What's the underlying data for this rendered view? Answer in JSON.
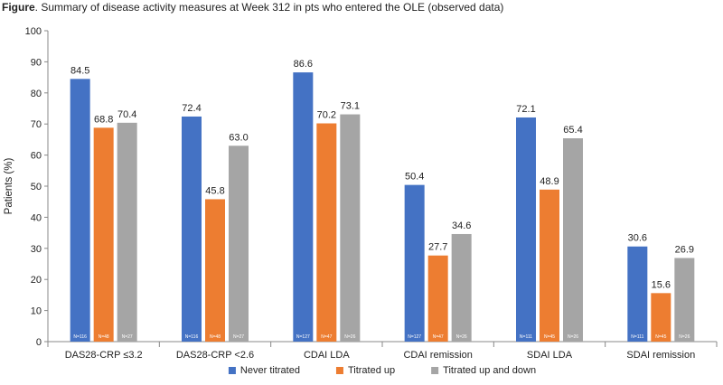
{
  "caption": {
    "prefix": "Figure",
    "text": ". Summary of disease activity measures at Week 312 in pts who entered the OLE (observed data)"
  },
  "chart_data": {
    "type": "bar",
    "ylabel": "Patients (%)",
    "xlabel": "",
    "ylim": [
      0,
      100
    ],
    "yticks": [
      0,
      10,
      20,
      30,
      40,
      50,
      60,
      70,
      80,
      90,
      100
    ],
    "grid": false,
    "legend_position": "bottom",
    "categories": [
      "DAS28-CRP ≤3.2",
      "DAS28-CRP <2.6",
      "CDAI LDA",
      "CDAI remission",
      "SDAI LDA",
      "SDAI remission"
    ],
    "series": [
      {
        "name": "Never titrated",
        "color": "#4472C4",
        "values": [
          84.5,
          72.4,
          86.6,
          50.4,
          72.1,
          30.6
        ],
        "n_labels": [
          "N=116",
          "N=116",
          "N=127",
          "N=127",
          "N=111",
          "N=111"
        ]
      },
      {
        "name": "Titrated up",
        "color": "#ED7D31",
        "values": [
          68.8,
          45.8,
          70.2,
          27.7,
          48.9,
          15.6
        ],
        "n_labels": [
          "N=48",
          "N=48",
          "N=47",
          "N=47",
          "N=45",
          "N=45"
        ]
      },
      {
        "name": "Titrated up and down",
        "color": "#A5A5A5",
        "values": [
          70.4,
          63.0,
          73.1,
          34.6,
          65.4,
          26.9
        ],
        "n_labels": [
          "N=27",
          "N=27",
          "N=26",
          "N=26",
          "N=26",
          "N=26"
        ]
      }
    ]
  }
}
